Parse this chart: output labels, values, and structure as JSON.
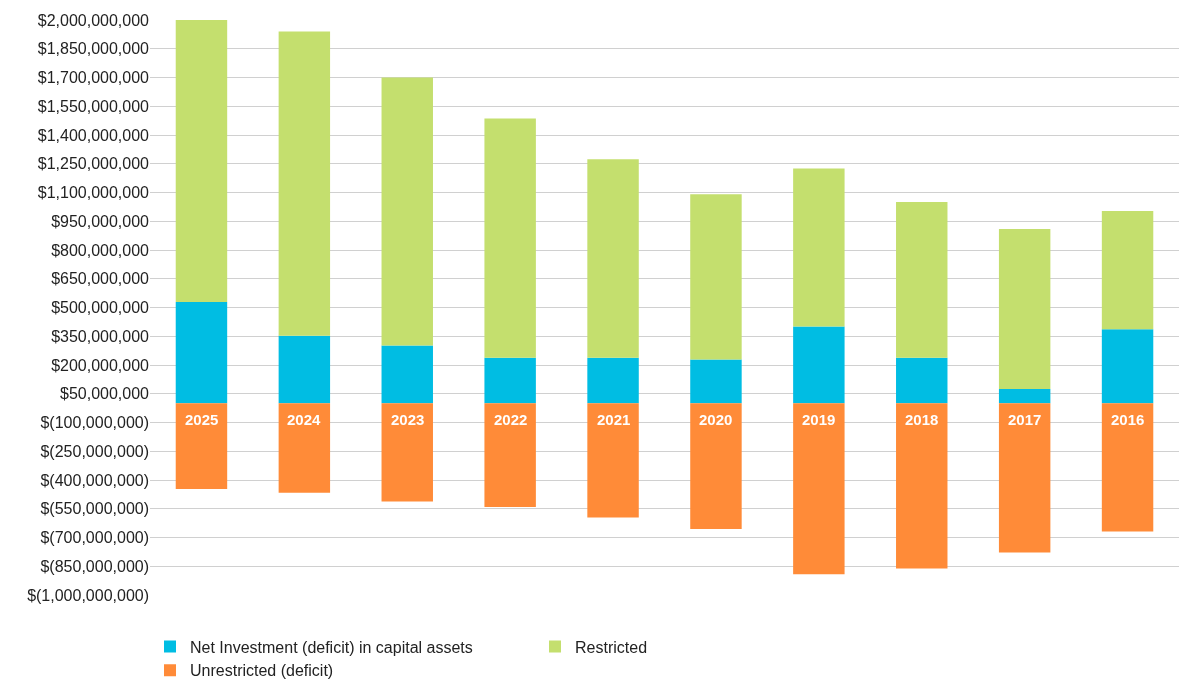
{
  "chart_data": {
    "type": "bar",
    "stacked": true,
    "categories": [
      "2025",
      "2024",
      "2023",
      "2022",
      "2021",
      "2020",
      "2019",
      "2018",
      "2017",
      "2016"
    ],
    "series": [
      {
        "name": "Net Investment (deficit) in capital assets",
        "color": "#00bde3",
        "values": [
          529000000,
          352000000,
          302000000,
          238000000,
          238000000,
          229000000,
          401000000,
          238000000,
          75000000,
          387000000
        ]
      },
      {
        "name": "Restricted",
        "color": "#c4df6e",
        "values": [
          1471000000,
          1588000000,
          1398000000,
          1248000000,
          1036000000,
          862000000,
          824000000,
          813000000,
          834000000,
          616000000
        ]
      },
      {
        "name": "Unrestricted (deficit)",
        "color": "#ff8b38",
        "values": [
          -447000000,
          -467000000,
          -512000000,
          -541000000,
          -596000000,
          -655000000,
          -892000000,
          -862000000,
          -778000000,
          -669000000
        ]
      }
    ],
    "ylim": [
      -1000000000,
      2000000000
    ],
    "yticks": [
      {
        "value": 2000000000,
        "label": "$2,000,000,000"
      },
      {
        "value": 1850000000,
        "label": "$1,850,000,000"
      },
      {
        "value": 1700000000,
        "label": "$1,700,000,000"
      },
      {
        "value": 1550000000,
        "label": "$1,550,000,000"
      },
      {
        "value": 1400000000,
        "label": "$1,400,000,000"
      },
      {
        "value": 1250000000,
        "label": "$1,250,000,000"
      },
      {
        "value": 1100000000,
        "label": "$1,100,000,000"
      },
      {
        "value": 950000000,
        "label": "$950,000,000"
      },
      {
        "value": 800000000,
        "label": "$800,000,000"
      },
      {
        "value": 650000000,
        "label": "$650,000,000"
      },
      {
        "value": 500000000,
        "label": "$500,000,000"
      },
      {
        "value": 350000000,
        "label": "$350,000,000"
      },
      {
        "value": 200000000,
        "label": "$200,000,000"
      },
      {
        "value": 50000000,
        "label": "$50,000,000"
      },
      {
        "value": -100000000,
        "label": "$(100,000,000)"
      },
      {
        "value": -250000000,
        "label": "$(250,000,000)"
      },
      {
        "value": -400000000,
        "label": "$(400,000,000)"
      },
      {
        "value": -550000000,
        "label": "$(550,000,000)"
      },
      {
        "value": -700000000,
        "label": "$(700,000,000)"
      },
      {
        "value": -850000000,
        "label": "$(850,000,000)"
      },
      {
        "value": -1000000000,
        "label": "$(1,000,000,000)"
      }
    ],
    "grid": "y",
    "legend": "bottom",
    "tick_labels": "y"
  }
}
